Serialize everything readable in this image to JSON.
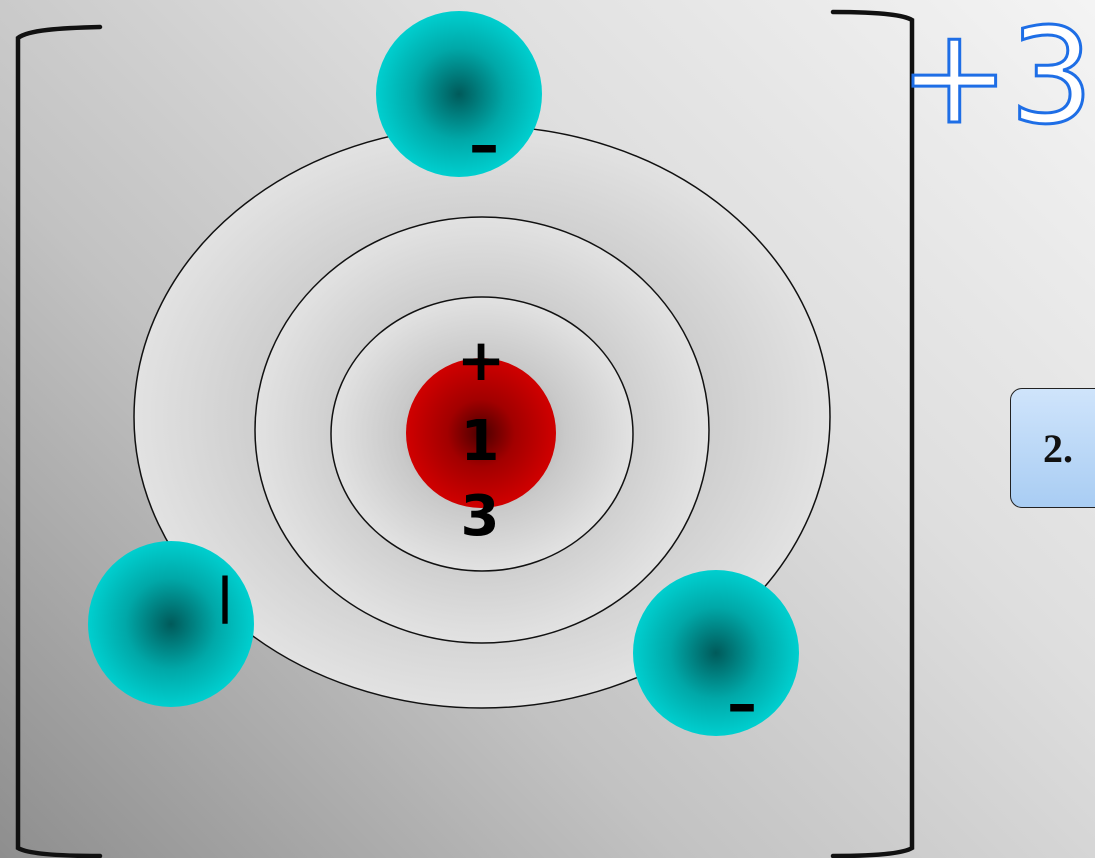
{
  "bracket_charge": "+3",
  "nucleus": {
    "charge_sign": "+",
    "number_top": "1",
    "number_bottom": "3"
  },
  "electrons": [
    {
      "sign": "–"
    },
    {
      "sign": "|"
    },
    {
      "sign": "–"
    }
  ],
  "step_box": {
    "label": "2."
  },
  "colors": {
    "nucleus": "#c80000",
    "electron": "#00c8c8",
    "charge_label": "#1e6ee6",
    "step_box": "#b3d3f5"
  }
}
